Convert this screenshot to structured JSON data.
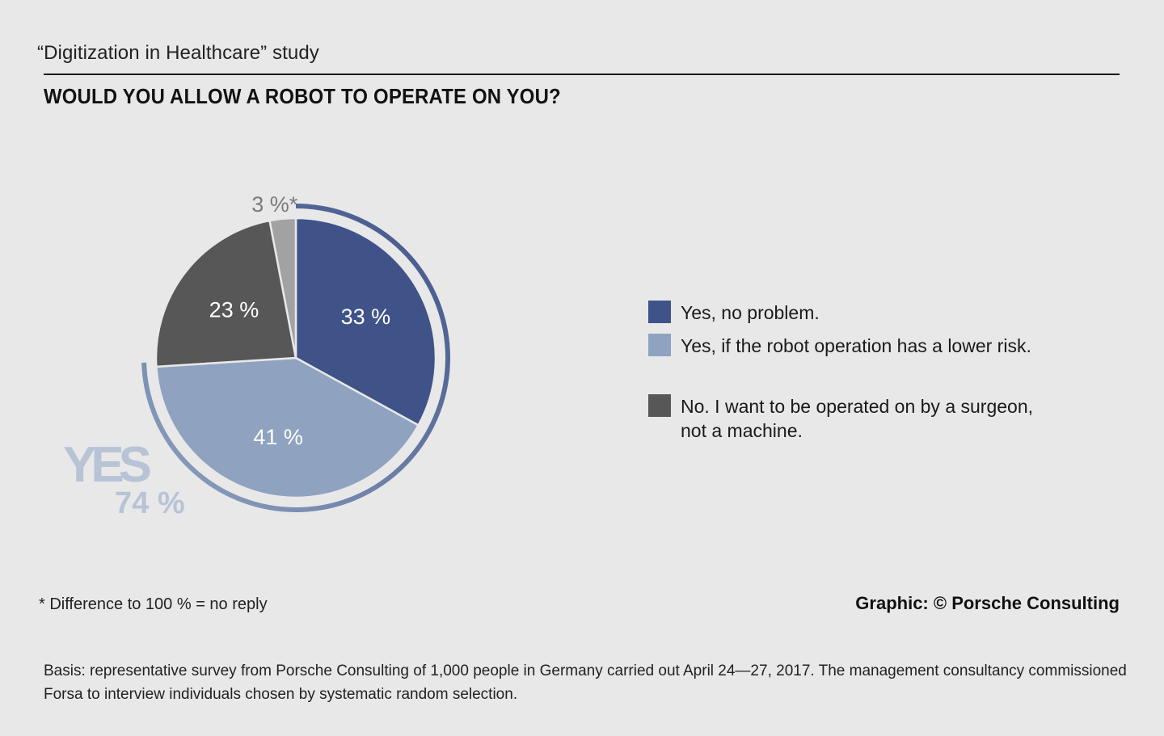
{
  "header": {
    "study": "“Digitization in Healthcare” study",
    "title": "WOULD YOU ALLOW A ROBOT TO OPERATE ON YOU?"
  },
  "chart_data": {
    "type": "pie",
    "title": "WOULD YOU ALLOW A ROBOT TO OPERATE ON YOU?",
    "slices": [
      {
        "label": "Yes, no problem.",
        "value": 33,
        "display": "33 %",
        "color": "#3f5389"
      },
      {
        "label": "Yes, if the robot operation has a lower risk.",
        "value": 41,
        "display": "41 %",
        "color": "#8fa3c0"
      },
      {
        "label": "No. I want to be operated on by a surgeon, not a machine.",
        "value": 23,
        "display": "23 %",
        "color": "#575757"
      },
      {
        "label": "no reply",
        "value": 3,
        "display": "3 %*",
        "color": "#a2a2a2"
      }
    ],
    "annotation": {
      "text": "YES",
      "value": "74 %",
      "covers": [
        "Yes, no problem.",
        "Yes, if the robot operation has a lower risk."
      ]
    },
    "legend_position": "right"
  },
  "legend": {
    "items": [
      {
        "label": "Yes, no problem.",
        "color": "#3f5389"
      },
      {
        "label": "Yes, if the robot operation has a lower risk.",
        "color": "#8fa3c0"
      },
      {
        "label": "No. I want to be operated on by a surgeon, not a machine.",
        "color": "#575757"
      }
    ]
  },
  "footer": {
    "footnote": "* Difference to 100 % = no reply",
    "credit": "Graphic: © Porsche Consulting",
    "basis": "Basis: representative survey from Porsche Consulting of 1,000 people in Germany carried out April 24—27, 2017. The management consultancy commissioned Forsa to interview individuals chosen by systematic random selection."
  }
}
